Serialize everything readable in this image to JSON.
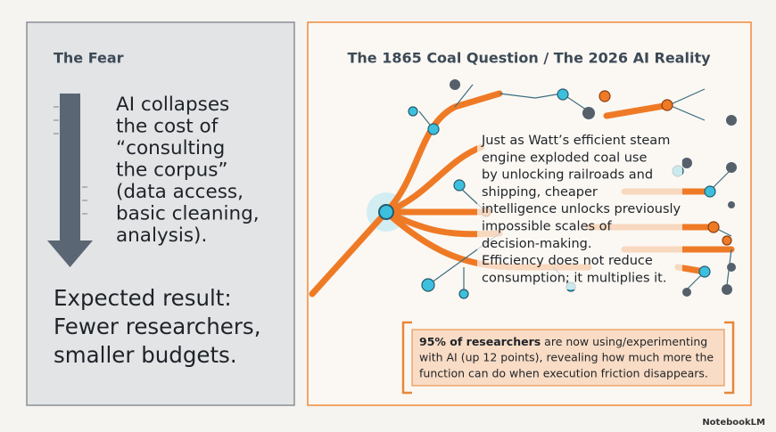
{
  "left": {
    "title": "The Fear",
    "body": [
      "AI collapses",
      "the cost of",
      "“consulting",
      "the corpus”",
      "(data access,",
      "basic cleaning,",
      "analysis)."
    ],
    "result": [
      "Expected result:",
      "Fewer researchers,",
      "smaller budgets."
    ]
  },
  "right": {
    "title": "The 1865 Coal Question / The 2026 AI Reality",
    "body": [
      "Just as Watt’s efficient steam",
      "engine exploded coal use",
      "by unlocking railroads and",
      "shipping, cheaper",
      "intelligence unlocks previously",
      "impossible scales of",
      "decision-making.",
      "Efficiency does not reduce",
      "consumption; it multiplies it."
    ],
    "callout": {
      "bold": "95% of researchers",
      "lines": [
        " are now using/experimenting",
        "with AI (up 12 points), revealing how much more the",
        "function can do when execution friction disappears."
      ]
    }
  },
  "footer": {
    "brand": "NotebookLM"
  }
}
